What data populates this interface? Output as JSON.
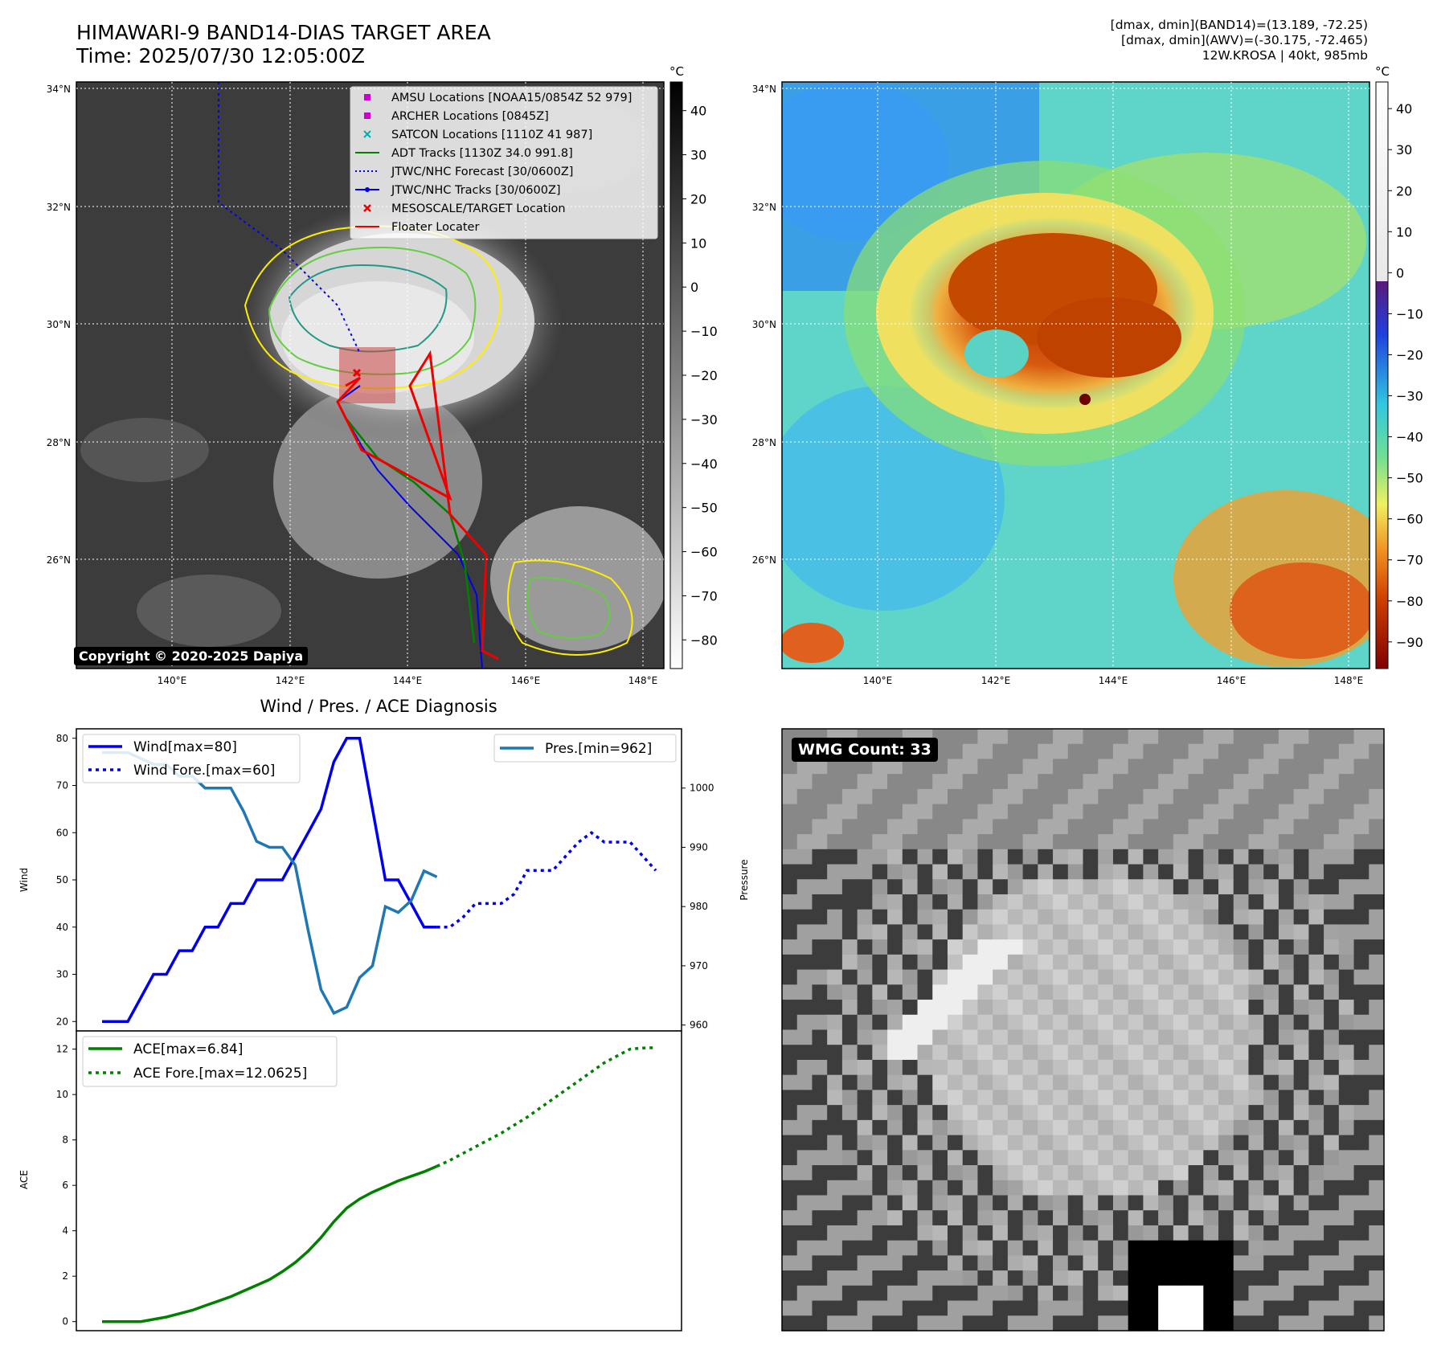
{
  "header": {
    "title_line1": "HIMAWARI-9 BAND14-DIAS TARGET AREA",
    "title_line2": "Time: 2025/07/30 12:05:00Z",
    "info_line1": "[dmax, dmin](BAND14)=(13.189, -72.25)",
    "info_line2": "[dmax, dmin](AWV)=(-30.175, -72.465)",
    "info_line3": "12W.KROSA | 40kt, 985mb"
  },
  "copyright": "Copyright © 2020-2025 Dapiya",
  "wmg_label": "WMG Count: 33",
  "colors": {
    "wind": "#0000ee",
    "pressure": "#1f77b4",
    "ace": "#008000",
    "track_red": "#ee0000",
    "adt_green": "#008000",
    "archer_magenta": "#cc00cc",
    "satcon_cyan": "#00b0b0",
    "contour_yellow": "#ffee00",
    "contour_green": "#66cc44",
    "contour_teal": "#229988"
  },
  "map_panel": {
    "lat_ticks": [
      "34°N",
      "32°N",
      "30°N",
      "28°N",
      "26°N"
    ],
    "lon_ticks": [
      "140°E",
      "142°E",
      "144°E",
      "146°E",
      "148°E"
    ],
    "legend": [
      {
        "label": "AMSU Locations [NOAA15/0854Z 52 979]",
        "icon": "square-magenta"
      },
      {
        "label": "ARCHER Locations [0845Z]",
        "icon": "square-magenta"
      },
      {
        "label": "SATCON Locations [1110Z 41 987]",
        "icon": "x-cyan"
      },
      {
        "label": "ADT Tracks [1130Z 34.0 991.8]",
        "icon": "line-green"
      },
      {
        "label": "JTWC/NHC Forecast [30/0600Z]",
        "icon": "dotted-blue"
      },
      {
        "label": "JTWC/NHC Tracks [30/0600Z]",
        "icon": "line-dot-blue"
      },
      {
        "label": "MESOSCALE/TARGET Location",
        "icon": "x-red"
      },
      {
        "label": "Floater Locater",
        "icon": "line-red"
      }
    ],
    "colorbar_unit": "°C",
    "colorbar_ticks": [
      "40",
      "30",
      "20",
      "10",
      "0",
      "−10",
      "−20",
      "−30",
      "−40",
      "−50",
      "−60",
      "−70",
      "−80"
    ]
  },
  "awv_panel": {
    "colorbar_unit": "°C",
    "colorbar_ticks": [
      "40",
      "30",
      "20",
      "10",
      "0",
      "−10",
      "−20",
      "−30",
      "−40",
      "−50",
      "−60",
      "−70",
      "−80",
      "−90"
    ]
  },
  "chart_data": [
    {
      "type": "line",
      "title": "Wind / Pres. / ACE Diagnosis",
      "ylabel": "Wind",
      "ylabel_right": "Pressure",
      "ylim": [
        18,
        82
      ],
      "ylim_right": [
        959,
        1010
      ],
      "yticks": [
        20,
        30,
        40,
        50,
        60,
        70,
        80
      ],
      "yticks_right": [
        960,
        970,
        980,
        990,
        1000
      ],
      "legend_left": [
        "Wind[max=80]",
        "Wind Fore.[max=60]"
      ],
      "legend_right": [
        "Pres.[min=962]"
      ],
      "series": [
        {
          "name": "Wind[max=80]",
          "x": [
            0,
            1,
            2,
            3,
            4,
            5,
            6,
            7,
            8,
            9,
            10,
            11,
            12,
            13,
            14,
            15,
            16,
            17,
            18,
            19,
            20,
            21,
            22,
            23,
            24,
            25,
            26
          ],
          "values": [
            20,
            20,
            20,
            25,
            30,
            30,
            35,
            35,
            40,
            40,
            45,
            45,
            50,
            50,
            50,
            55,
            60,
            65,
            75,
            80,
            80,
            65,
            50,
            50,
            45,
            40,
            40
          ]
        },
        {
          "name": "Wind Fore.[max=60]",
          "x": [
            26,
            27,
            28,
            29,
            30,
            31,
            32,
            33,
            34,
            35,
            36,
            37,
            38,
            39,
            40,
            41,
            42,
            43
          ],
          "values": [
            40,
            40,
            42,
            45,
            45,
            45,
            47,
            52,
            52,
            52,
            55,
            58,
            60,
            58,
            58,
            58,
            55,
            52
          ]
        },
        {
          "name": "Pres.[min=962]",
          "x": [
            0,
            1,
            2,
            3,
            4,
            5,
            6,
            7,
            8,
            9,
            10,
            11,
            12,
            13,
            14,
            15,
            16,
            17,
            18,
            19,
            20,
            21,
            22,
            23,
            24,
            25,
            26
          ],
          "values": [
            1006,
            1006,
            1006,
            1005,
            1004,
            1004,
            1002,
            1002,
            1000,
            1000,
            1000,
            996,
            991,
            990,
            990,
            987,
            976,
            966,
            962,
            963,
            968,
            970,
            980,
            979,
            981,
            986,
            985
          ]
        }
      ]
    },
    {
      "type": "line",
      "ylabel": "ACE",
      "ylim": [
        -0.4,
        12.8
      ],
      "yticks": [
        0,
        2,
        4,
        6,
        8,
        10,
        12
      ],
      "legend": [
        "ACE[max=6.84]",
        "ACE Fore.[max=12.0625]"
      ],
      "series": [
        {
          "name": "ACE[max=6.84]",
          "x": [
            0,
            1,
            2,
            3,
            4,
            5,
            6,
            7,
            8,
            9,
            10,
            11,
            12,
            13,
            14,
            15,
            16,
            17,
            18,
            19,
            20,
            21,
            22,
            23,
            24,
            25,
            26
          ],
          "values": [
            0,
            0,
            0,
            0,
            0.1,
            0.2,
            0.35,
            0.5,
            0.7,
            0.9,
            1.1,
            1.35,
            1.6,
            1.85,
            2.2,
            2.6,
            3.1,
            3.7,
            4.4,
            5.0,
            5.4,
            5.7,
            5.95,
            6.2,
            6.4,
            6.6,
            6.84
          ]
        },
        {
          "name": "ACE Fore.[max=12.0625]",
          "x": [
            26,
            27,
            28,
            29,
            30,
            31,
            32,
            33,
            34,
            35,
            36,
            37,
            38,
            39,
            40,
            41,
            42,
            43
          ],
          "values": [
            6.84,
            7.1,
            7.4,
            7.7,
            8.0,
            8.3,
            8.65,
            9.0,
            9.4,
            9.8,
            10.2,
            10.6,
            11.0,
            11.4,
            11.7,
            12.0,
            12.05,
            12.0625
          ]
        }
      ]
    }
  ]
}
